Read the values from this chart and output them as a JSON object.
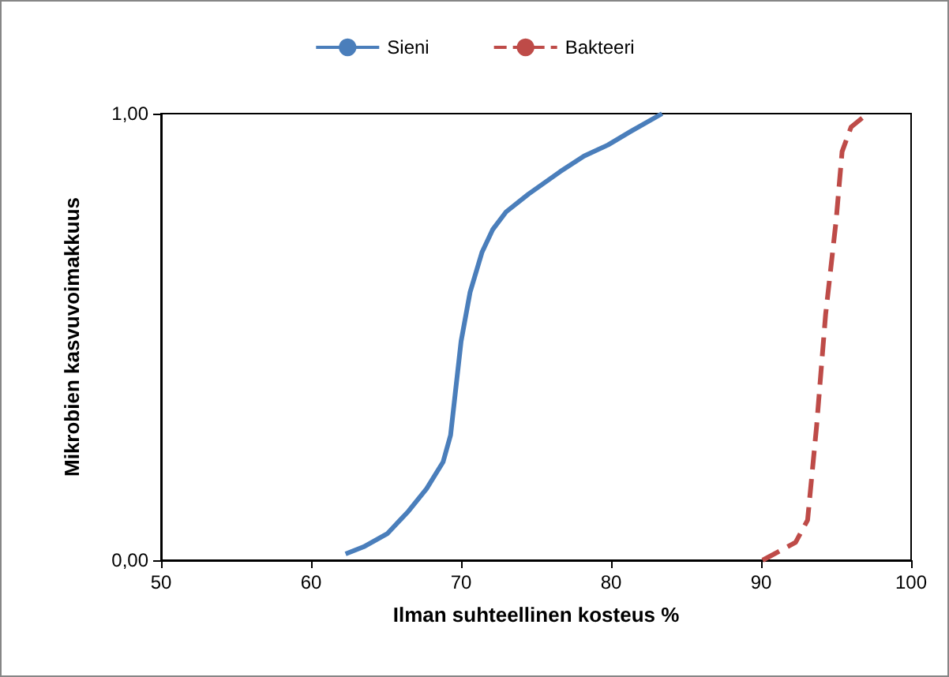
{
  "chart_data": {
    "type": "line",
    "xlabel": "Ilman suhteellinen kosteus %",
    "ylabel": "Mikrobien kasvuvoimakkuus",
    "xlim": [
      50,
      100
    ],
    "xticks": [
      50,
      60,
      70,
      80,
      90,
      100
    ],
    "ylim": [
      0,
      1
    ],
    "yticks": [
      {
        "value": 0,
        "label": "0,00"
      },
      {
        "value": 1,
        "label": "1,00"
      }
    ],
    "grid": false,
    "legend": "top",
    "marker": "none",
    "series": [
      {
        "name": "Sieni",
        "color": "#4a7ebb",
        "line_style": "solid",
        "x": [
          62.3,
          63.5,
          65.1,
          66.5,
          67.7,
          68.8,
          69.3,
          69.6,
          70.0,
          70.6,
          71.4,
          72.1,
          73.0,
          74.5,
          76.6,
          78.2,
          79.8,
          81.3,
          83.4
        ],
        "values": [
          0.014,
          0.03,
          0.06,
          0.11,
          0.16,
          0.22,
          0.28,
          0.37,
          0.49,
          0.6,
          0.69,
          0.74,
          0.78,
          0.82,
          0.87,
          0.905,
          0.93,
          0.96,
          1.0
        ]
      },
      {
        "name": "Bakteeri",
        "color": "#be4b48",
        "line_style": "dashed",
        "x": [
          90.1,
          92.3,
          93.1,
          93.7,
          94.3,
          95.0,
          95.4,
          96.0,
          97.1
        ],
        "values": [
          0,
          0.04,
          0.09,
          0.3,
          0.55,
          0.76,
          0.915,
          0.97,
          1.0
        ]
      }
    ]
  }
}
